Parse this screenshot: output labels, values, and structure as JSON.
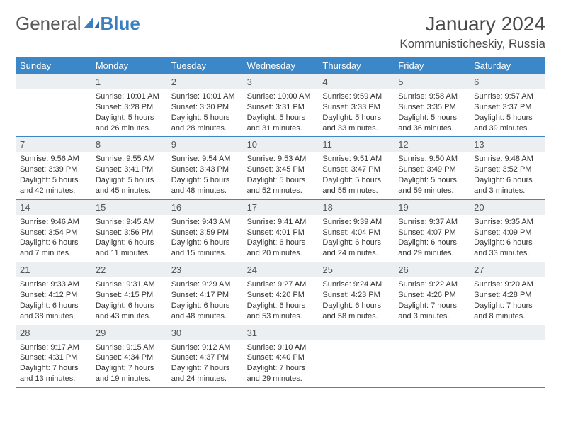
{
  "brand": {
    "part1": "General",
    "part2": "Blue"
  },
  "title": "January 2024",
  "location": "Kommunisticheskiy, Russia",
  "colors": {
    "header_bg": "#3b87c8",
    "header_text": "#ffffff",
    "daynum_bg": "#eceff1",
    "daynum_text": "#555555",
    "body_text": "#333333",
    "rule": "#3b87c8",
    "logo_gray": "#5a5a5a",
    "logo_blue": "#3b7fbf"
  },
  "weekdays": [
    "Sunday",
    "Monday",
    "Tuesday",
    "Wednesday",
    "Thursday",
    "Friday",
    "Saturday"
  ],
  "weeks": [
    [
      null,
      {
        "n": "1",
        "sr": "Sunrise: 10:01 AM",
        "ss": "Sunset: 3:28 PM",
        "d1": "Daylight: 5 hours",
        "d2": "and 26 minutes."
      },
      {
        "n": "2",
        "sr": "Sunrise: 10:01 AM",
        "ss": "Sunset: 3:30 PM",
        "d1": "Daylight: 5 hours",
        "d2": "and 28 minutes."
      },
      {
        "n": "3",
        "sr": "Sunrise: 10:00 AM",
        "ss": "Sunset: 3:31 PM",
        "d1": "Daylight: 5 hours",
        "d2": "and 31 minutes."
      },
      {
        "n": "4",
        "sr": "Sunrise: 9:59 AM",
        "ss": "Sunset: 3:33 PM",
        "d1": "Daylight: 5 hours",
        "d2": "and 33 minutes."
      },
      {
        "n": "5",
        "sr": "Sunrise: 9:58 AM",
        "ss": "Sunset: 3:35 PM",
        "d1": "Daylight: 5 hours",
        "d2": "and 36 minutes."
      },
      {
        "n": "6",
        "sr": "Sunrise: 9:57 AM",
        "ss": "Sunset: 3:37 PM",
        "d1": "Daylight: 5 hours",
        "d2": "and 39 minutes."
      }
    ],
    [
      {
        "n": "7",
        "sr": "Sunrise: 9:56 AM",
        "ss": "Sunset: 3:39 PM",
        "d1": "Daylight: 5 hours",
        "d2": "and 42 minutes."
      },
      {
        "n": "8",
        "sr": "Sunrise: 9:55 AM",
        "ss": "Sunset: 3:41 PM",
        "d1": "Daylight: 5 hours",
        "d2": "and 45 minutes."
      },
      {
        "n": "9",
        "sr": "Sunrise: 9:54 AM",
        "ss": "Sunset: 3:43 PM",
        "d1": "Daylight: 5 hours",
        "d2": "and 48 minutes."
      },
      {
        "n": "10",
        "sr": "Sunrise: 9:53 AM",
        "ss": "Sunset: 3:45 PM",
        "d1": "Daylight: 5 hours",
        "d2": "and 52 minutes."
      },
      {
        "n": "11",
        "sr": "Sunrise: 9:51 AM",
        "ss": "Sunset: 3:47 PM",
        "d1": "Daylight: 5 hours",
        "d2": "and 55 minutes."
      },
      {
        "n": "12",
        "sr": "Sunrise: 9:50 AM",
        "ss": "Sunset: 3:49 PM",
        "d1": "Daylight: 5 hours",
        "d2": "and 59 minutes."
      },
      {
        "n": "13",
        "sr": "Sunrise: 9:48 AM",
        "ss": "Sunset: 3:52 PM",
        "d1": "Daylight: 6 hours",
        "d2": "and 3 minutes."
      }
    ],
    [
      {
        "n": "14",
        "sr": "Sunrise: 9:46 AM",
        "ss": "Sunset: 3:54 PM",
        "d1": "Daylight: 6 hours",
        "d2": "and 7 minutes."
      },
      {
        "n": "15",
        "sr": "Sunrise: 9:45 AM",
        "ss": "Sunset: 3:56 PM",
        "d1": "Daylight: 6 hours",
        "d2": "and 11 minutes."
      },
      {
        "n": "16",
        "sr": "Sunrise: 9:43 AM",
        "ss": "Sunset: 3:59 PM",
        "d1": "Daylight: 6 hours",
        "d2": "and 15 minutes."
      },
      {
        "n": "17",
        "sr": "Sunrise: 9:41 AM",
        "ss": "Sunset: 4:01 PM",
        "d1": "Daylight: 6 hours",
        "d2": "and 20 minutes."
      },
      {
        "n": "18",
        "sr": "Sunrise: 9:39 AM",
        "ss": "Sunset: 4:04 PM",
        "d1": "Daylight: 6 hours",
        "d2": "and 24 minutes."
      },
      {
        "n": "19",
        "sr": "Sunrise: 9:37 AM",
        "ss": "Sunset: 4:07 PM",
        "d1": "Daylight: 6 hours",
        "d2": "and 29 minutes."
      },
      {
        "n": "20",
        "sr": "Sunrise: 9:35 AM",
        "ss": "Sunset: 4:09 PM",
        "d1": "Daylight: 6 hours",
        "d2": "and 33 minutes."
      }
    ],
    [
      {
        "n": "21",
        "sr": "Sunrise: 9:33 AM",
        "ss": "Sunset: 4:12 PM",
        "d1": "Daylight: 6 hours",
        "d2": "and 38 minutes."
      },
      {
        "n": "22",
        "sr": "Sunrise: 9:31 AM",
        "ss": "Sunset: 4:15 PM",
        "d1": "Daylight: 6 hours",
        "d2": "and 43 minutes."
      },
      {
        "n": "23",
        "sr": "Sunrise: 9:29 AM",
        "ss": "Sunset: 4:17 PM",
        "d1": "Daylight: 6 hours",
        "d2": "and 48 minutes."
      },
      {
        "n": "24",
        "sr": "Sunrise: 9:27 AM",
        "ss": "Sunset: 4:20 PM",
        "d1": "Daylight: 6 hours",
        "d2": "and 53 minutes."
      },
      {
        "n": "25",
        "sr": "Sunrise: 9:24 AM",
        "ss": "Sunset: 4:23 PM",
        "d1": "Daylight: 6 hours",
        "d2": "and 58 minutes."
      },
      {
        "n": "26",
        "sr": "Sunrise: 9:22 AM",
        "ss": "Sunset: 4:26 PM",
        "d1": "Daylight: 7 hours",
        "d2": "and 3 minutes."
      },
      {
        "n": "27",
        "sr": "Sunrise: 9:20 AM",
        "ss": "Sunset: 4:28 PM",
        "d1": "Daylight: 7 hours",
        "d2": "and 8 minutes."
      }
    ],
    [
      {
        "n": "28",
        "sr": "Sunrise: 9:17 AM",
        "ss": "Sunset: 4:31 PM",
        "d1": "Daylight: 7 hours",
        "d2": "and 13 minutes."
      },
      {
        "n": "29",
        "sr": "Sunrise: 9:15 AM",
        "ss": "Sunset: 4:34 PM",
        "d1": "Daylight: 7 hours",
        "d2": "and 19 minutes."
      },
      {
        "n": "30",
        "sr": "Sunrise: 9:12 AM",
        "ss": "Sunset: 4:37 PM",
        "d1": "Daylight: 7 hours",
        "d2": "and 24 minutes."
      },
      {
        "n": "31",
        "sr": "Sunrise: 9:10 AM",
        "ss": "Sunset: 4:40 PM",
        "d1": "Daylight: 7 hours",
        "d2": "and 29 minutes."
      },
      null,
      null,
      null
    ]
  ]
}
